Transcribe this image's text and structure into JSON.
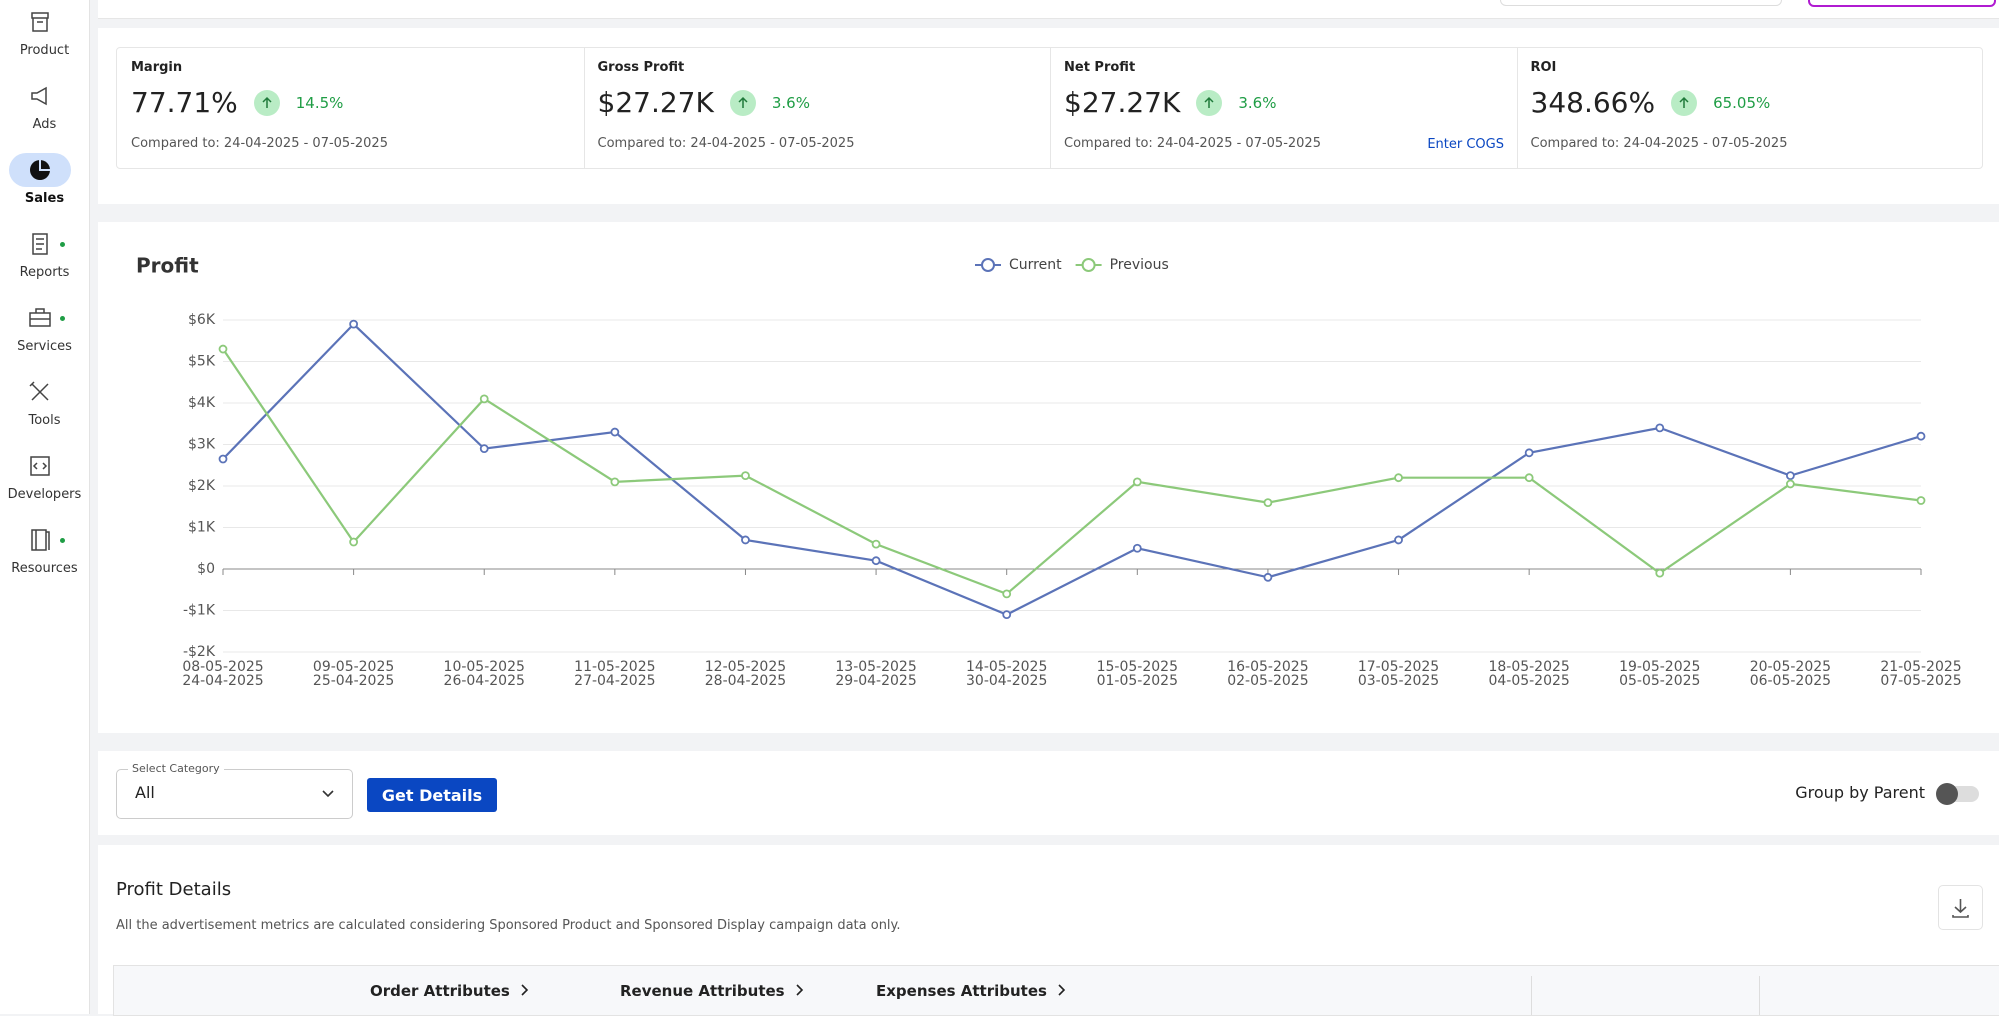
{
  "sidebar": [
    "Product",
    "Ads",
    "Sales",
    "Reports",
    "Services",
    "Tools",
    "Developers",
    "Resources"
  ],
  "kpis": [
    {
      "label": "Margin",
      "value": "77.71%",
      "change": "14.5%",
      "compared": "Compared to: 24-04-2025 - 07-05-2025"
    },
    {
      "label": "Gross Profit",
      "value": "$27.27K",
      "change": "3.6%",
      "compared": "Compared to: 24-04-2025 - 07-05-2025"
    },
    {
      "label": "Net Profit",
      "value": "$27.27K",
      "change": "3.6%",
      "compared": "Compared to: 24-04-2025 - 07-05-2025",
      "link": "Enter COGS"
    },
    {
      "label": "ROI",
      "value": "348.66%",
      "change": "65.05%",
      "compared": "Compared to: 24-04-2025 - 07-05-2025"
    }
  ],
  "chart_data": {
    "type": "line",
    "title": "Profit",
    "categories": [
      "08-05-2025",
      "09-05-2025",
      "10-05-2025",
      "11-05-2025",
      "12-05-2025",
      "13-05-2025",
      "14-05-2025",
      "15-05-2025",
      "16-05-2025",
      "17-05-2025",
      "18-05-2025",
      "19-05-2025",
      "20-05-2025",
      "21-05-2025"
    ],
    "categories_previous": [
      "24-04-2025",
      "25-04-2025",
      "26-04-2025",
      "27-04-2025",
      "28-04-2025",
      "29-04-2025",
      "30-04-2025",
      "01-05-2025",
      "02-05-2025",
      "03-05-2025",
      "04-05-2025",
      "05-05-2025",
      "06-05-2025",
      "07-05-2025"
    ],
    "series": [
      {
        "name": "Current",
        "color": "#5b73b8",
        "values": [
          2650,
          5900,
          2900,
          3300,
          700,
          200,
          -1100,
          500,
          -200,
          700,
          2800,
          3400,
          2250,
          3200
        ]
      },
      {
        "name": "Previous",
        "color": "#8cc97a",
        "values": [
          5300,
          650,
          4100,
          2100,
          2250,
          600,
          -600,
          2100,
          1600,
          2200,
          2200,
          -100,
          2050,
          1650
        ]
      }
    ],
    "ylim": [
      -2000,
      6000
    ],
    "yticks": [
      {
        "value": -2000,
        "label": "-$2K"
      },
      {
        "value": -1000,
        "label": "-$1K"
      },
      {
        "value": 0,
        "label": "$0"
      },
      {
        "value": 1000,
        "label": "$1K"
      },
      {
        "value": 2000,
        "label": "$2K"
      },
      {
        "value": 3000,
        "label": "$3K"
      },
      {
        "value": 4000,
        "label": "$4K"
      },
      {
        "value": 5000,
        "label": "$5K"
      },
      {
        "value": 6000,
        "label": "$6K"
      }
    ],
    "grid": true,
    "legend": "top"
  },
  "filters": {
    "select_label": "Select Category",
    "select_value": "All",
    "button": "Get Details",
    "toggle_label": "Group by Parent"
  },
  "details": {
    "title": "Profit Details",
    "note": "All the advertisement metrics are calculated considering Sponsored Product and Sponsored Display campaign data only.",
    "columns": [
      "Order Attributes",
      "Revenue Attributes",
      "Expenses Attributes"
    ]
  }
}
